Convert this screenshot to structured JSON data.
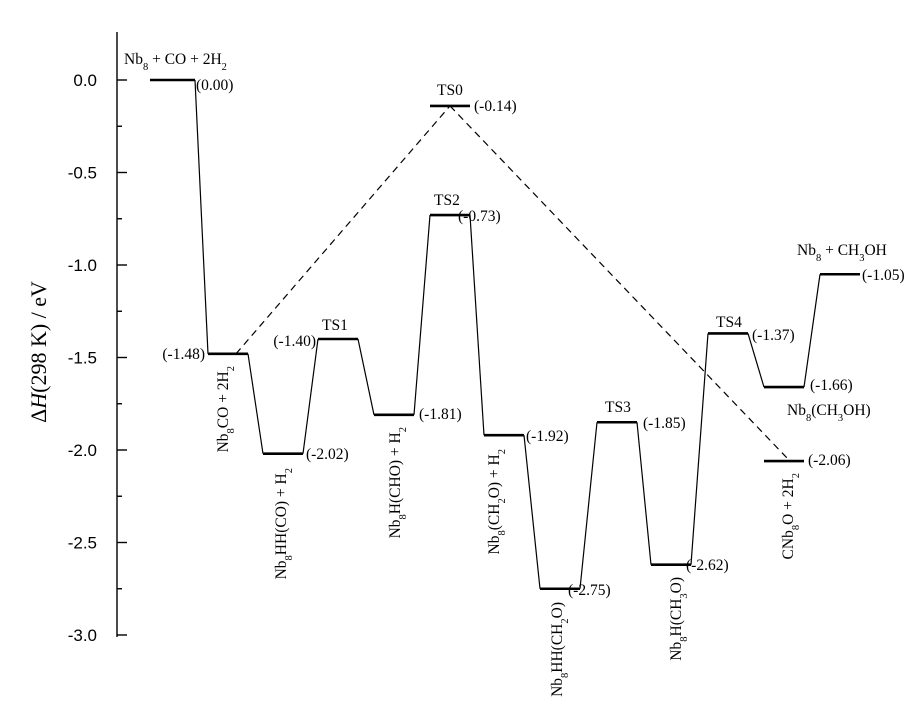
{
  "chart_data": {
    "type": "energy-profile",
    "ylabel": "ΔH(298 K) / eV",
    "ylim": [
      -3.0,
      0.0
    ],
    "yticks": [
      "0.0",
      "-0.5",
      "-1.0",
      "-1.5",
      "-2.0",
      "-2.5",
      "-3.0"
    ],
    "levels": [
      {
        "id": "L0",
        "energy": 0.0,
        "value_label": "(0.00)",
        "name_label": "Nb8 + CO + 2H2"
      },
      {
        "id": "L1",
        "energy": -1.48,
        "value_label": "(-1.48)",
        "name_label": "Nb8CO + 2H2"
      },
      {
        "id": "L2",
        "energy": -2.02,
        "value_label": "(-2.02)",
        "name_label": "Nb8HH(CO) + H2"
      },
      {
        "id": "TS1",
        "energy": -1.4,
        "value_label": "(-1.40)",
        "name_label": "TS1"
      },
      {
        "id": "L3",
        "energy": -1.81,
        "value_label": "(-1.81)",
        "name_label": "Nb8H(CHO) + H2"
      },
      {
        "id": "TS2",
        "energy": -0.73,
        "value_label": "(-0.73)",
        "name_label": "TS2"
      },
      {
        "id": "L4",
        "energy": -1.92,
        "value_label": "(-1.92)",
        "name_label": "Nb8(CH2O) + H2"
      },
      {
        "id": "L5",
        "energy": -2.75,
        "value_label": "(-2.75)",
        "name_label": "Nb8HH(CH2O)"
      },
      {
        "id": "TS3",
        "energy": -1.85,
        "value_label": "(-1.85)",
        "name_label": "TS3"
      },
      {
        "id": "L6",
        "energy": -2.62,
        "value_label": "(-2.62)",
        "name_label": "Nb8H(CH3O)"
      },
      {
        "id": "TS4",
        "energy": -1.37,
        "value_label": "(-1.37)",
        "name_label": "TS4"
      },
      {
        "id": "L7",
        "energy": -1.66,
        "value_label": "(-1.66)",
        "name_label": "Nb8(CH3OH)"
      },
      {
        "id": "L8",
        "energy": -1.05,
        "value_label": "(-1.05)",
        "name_label": "Nb8 + CH3OH"
      },
      {
        "id": "TS0",
        "energy": -0.14,
        "value_label": "(-0.14)",
        "name_label": "TS0"
      },
      {
        "id": "L9",
        "energy": -2.06,
        "value_label": "(-2.06)",
        "name_label": "CNb8O + 2H2"
      }
    ],
    "solid_path": [
      "L0",
      "L1",
      "L2",
      "TS1",
      "L3",
      "TS2",
      "L4",
      "L5",
      "TS3",
      "L6",
      "TS4",
      "L7",
      "L8"
    ],
    "dashed_path": [
      "L1",
      "TS0",
      "L9"
    ]
  }
}
